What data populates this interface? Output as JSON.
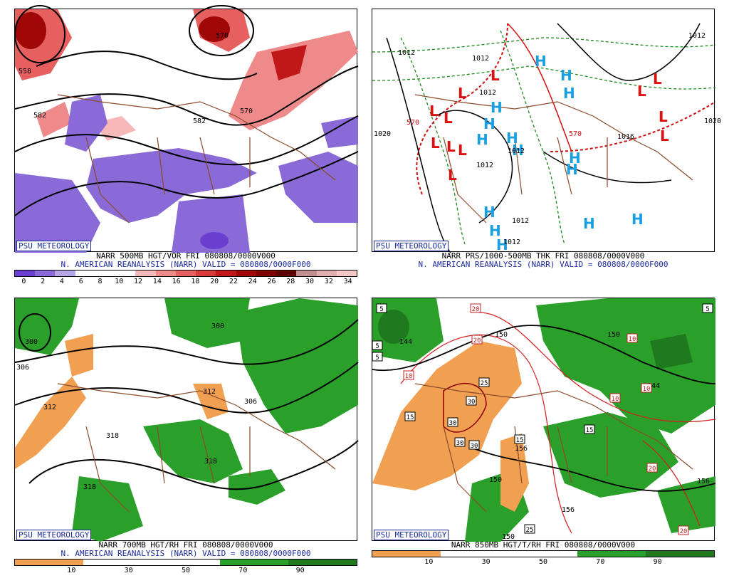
{
  "panels": {
    "tl": {
      "title1": "NARR 500MB HGT/VOR FRI 080808/0000V000",
      "title2": "N. AMERICAN REANALYSIS (NARR) VALID = 080808/0000F000",
      "badge": "PSU METEOROLOGY",
      "ticks": [
        "0",
        "2",
        "4",
        "6",
        "8",
        "10",
        "12",
        "14",
        "16",
        "18",
        "20",
        "22",
        "24",
        "26",
        "28",
        "30",
        "32",
        "34"
      ],
      "colors": [
        "#6a3fd0",
        "#8a6ad6",
        "#b7a6e6",
        "#ffffff",
        "#ffffff",
        "#ffffff",
        "#f6b8b8",
        "#ef8a8a",
        "#e66060",
        "#d93a3a",
        "#c01818",
        "#a00808",
        "#800000",
        "#600000",
        "#c09090",
        "#e0b0b0",
        "#f2c8c8"
      ],
      "labels": [
        "582",
        "582",
        "570",
        "558",
        "570"
      ]
    },
    "tr": {
      "title1": "NARR PRS/1000-500MB THK FRI 080808/0000V000",
      "title2": "N. AMERICAN REANALYSIS (NARR) VALID = 080808/0000F000",
      "badge": "PSU METEOROLOGY",
      "labels": [
        "1012",
        "1012",
        "1012",
        "1020",
        "1012",
        "1012",
        "1016",
        "1012",
        "570",
        "570",
        "1012",
        "1020",
        "1012"
      ],
      "hi_color": "#1aa0e0",
      "lo_color": "#e01010"
    },
    "bl": {
      "title1": "NARR 700MB HGT/RH FRI 080808/0000V000",
      "title2": "N. AMERICAN REANALYSIS (NARR) VALID = 080808/0000F000",
      "badge": "PSU METEOROLOGY",
      "ticks": [
        "10",
        "30",
        "50",
        "70",
        "90"
      ],
      "colors": [
        "#f0a050",
        "#ffffff",
        "#ffffff",
        "#2aa02a",
        "#1f7a1f"
      ],
      "labels": [
        "300",
        "306",
        "312",
        "318",
        "318",
        "312",
        "306",
        "318",
        "300"
      ]
    },
    "br": {
      "title1": "NARR 850MB HGT/T/RH FRI 080808/0000V000",
      "badge": "PSU METEOROLOGY",
      "ticks": [
        "10",
        "30",
        "50",
        "70",
        "90"
      ],
      "colors": [
        "#f0a050",
        "#ffffff",
        "#ffffff",
        "#2aa02a",
        "#1f7a1f"
      ],
      "labels": [
        "144",
        "150",
        "156",
        "150",
        "150",
        "156",
        "150",
        "144",
        "156"
      ],
      "boxes": [
        "5",
        "5",
        "5",
        "5",
        "20",
        "20",
        "10",
        "25",
        "30",
        "30",
        "30",
        "30",
        "15",
        "10",
        "15",
        "15",
        "10",
        "10",
        "20",
        "20",
        "25"
      ]
    }
  }
}
